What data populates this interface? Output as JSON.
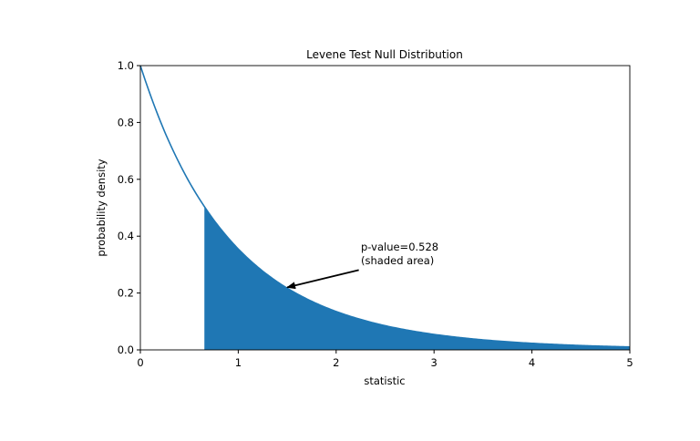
{
  "chart_data": {
    "type": "area",
    "title": "Levene Test Null Distribution",
    "xlabel": "statistic",
    "ylabel": "probability density",
    "xlim": [
      0,
      5
    ],
    "ylim": [
      0,
      1.0
    ],
    "xticks": [
      "0",
      "1",
      "2",
      "3",
      "4",
      "5"
    ],
    "yticks": [
      "0.0",
      "0.2",
      "0.4",
      "0.6",
      "0.8",
      "1.0"
    ],
    "grid": false,
    "series": [
      {
        "x": [
          0,
          0.25,
          0.5,
          0.75,
          1,
          1.25,
          1.5,
          1.75,
          2,
          2.5,
          3,
          3.5,
          4,
          4.5,
          5
        ],
        "y": [
          1.0,
          0.766,
          0.59,
          0.457,
          0.355,
          0.277,
          0.217,
          0.171,
          0.135,
          0.0851,
          0.0545,
          0.0353,
          0.0232,
          0.0154,
          0.0104
        ]
      }
    ],
    "shaded_region": {
      "x_start": 0.654,
      "x_end": 5
    },
    "annotation": {
      "line1": "p-value=0.528",
      "line2": "(shaded area)",
      "text_at": [
        2.25,
        0.3
      ],
      "arrow_to": [
        1.5,
        0.22
      ]
    },
    "colors": {
      "line": "#1f77b4",
      "fill": "#1f77b4"
    }
  }
}
